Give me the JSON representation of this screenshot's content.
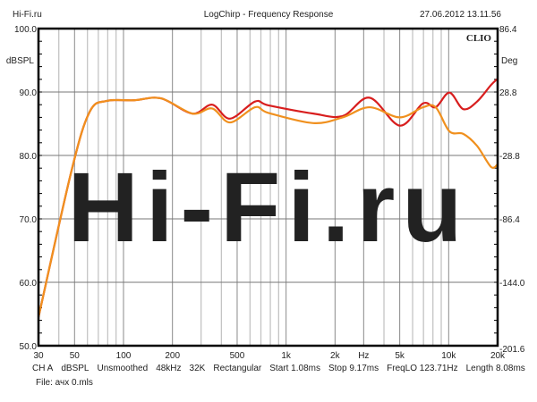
{
  "header": {
    "left": "Hi-Fi.ru",
    "title": "LogChirp - Frequency Response",
    "timestamp": "27.06.2012 13.11.56"
  },
  "brand": "CLIO",
  "watermark": "Hi-Fi.ru",
  "footer": {
    "settings": [
      "CH A",
      "dBSPL",
      "Unsmoothed",
      "48kHz",
      "32K",
      "Rectangular",
      "Start 1.08ms",
      "Stop 9.17ms",
      "FreqLO 123.71Hz",
      "Length 8.08ms"
    ],
    "file": "File: ачх 0.mls"
  },
  "chart_data": {
    "type": "line",
    "title": "LogChirp - Frequency Response",
    "xlabel": "Hz",
    "ylabel": "dBSPL",
    "y2label": "Deg",
    "xscale": "log",
    "xlim": [
      30,
      20000
    ],
    "ylim": [
      50,
      100
    ],
    "y2lim": [
      -201.6,
      86.4
    ],
    "xticks": [
      {
        "v": 30,
        "l": "30"
      },
      {
        "v": 50,
        "l": "50"
      },
      {
        "v": 100,
        "l": "100"
      },
      {
        "v": 200,
        "l": "200"
      },
      {
        "v": 500,
        "l": "500"
      },
      {
        "v": 1000,
        "l": "1k"
      },
      {
        "v": 2000,
        "l": "2k"
      },
      {
        "v": 3000,
        "l": "Hz"
      },
      {
        "v": 5000,
        "l": "5k"
      },
      {
        "v": 10000,
        "l": "10k"
      },
      {
        "v": 20000,
        "l": "20k"
      }
    ],
    "yticks": [
      "50.0",
      "60.0",
      "70.0",
      "80.0",
      "90.0",
      "100.0"
    ],
    "y2ticks": [
      "-201.6",
      "-144.0",
      "-86.4",
      "-28.8",
      "28.8",
      "86.4"
    ],
    "grid": true,
    "series": [
      {
        "name": "red",
        "color": "#d81e1e",
        "x": [
          30,
          48,
          62,
          79,
          116,
          170,
          265,
          351,
          452,
          644,
          779,
          1469,
          2226,
          3262,
          5000,
          6950,
          8320,
          10110,
          12300,
          14950,
          18200,
          20000
        ],
        "y": [
          54.5,
          77.7,
          86.9,
          88.6,
          88.7,
          89.0,
          86.6,
          88.0,
          85.8,
          88.5,
          87.9,
          86.6,
          86.2,
          89.1,
          84.7,
          88.2,
          87.6,
          89.9,
          87.3,
          88.5,
          91.1,
          92.1
        ]
      },
      {
        "name": "orange",
        "color": "#f0901e",
        "x": [
          30,
          48,
          62,
          79,
          116,
          170,
          265,
          351,
          452,
          644,
          779,
          1469,
          2226,
          3262,
          5000,
          6950,
          8320,
          10110,
          12300,
          14950,
          18200,
          20000
        ],
        "y": [
          54.5,
          77.7,
          86.9,
          88.6,
          88.7,
          89.0,
          86.6,
          87.4,
          85.2,
          87.6,
          86.7,
          85.1,
          86.0,
          87.6,
          86.0,
          87.6,
          87.6,
          83.8,
          83.4,
          81.5,
          78.2,
          78.6
        ]
      }
    ]
  }
}
